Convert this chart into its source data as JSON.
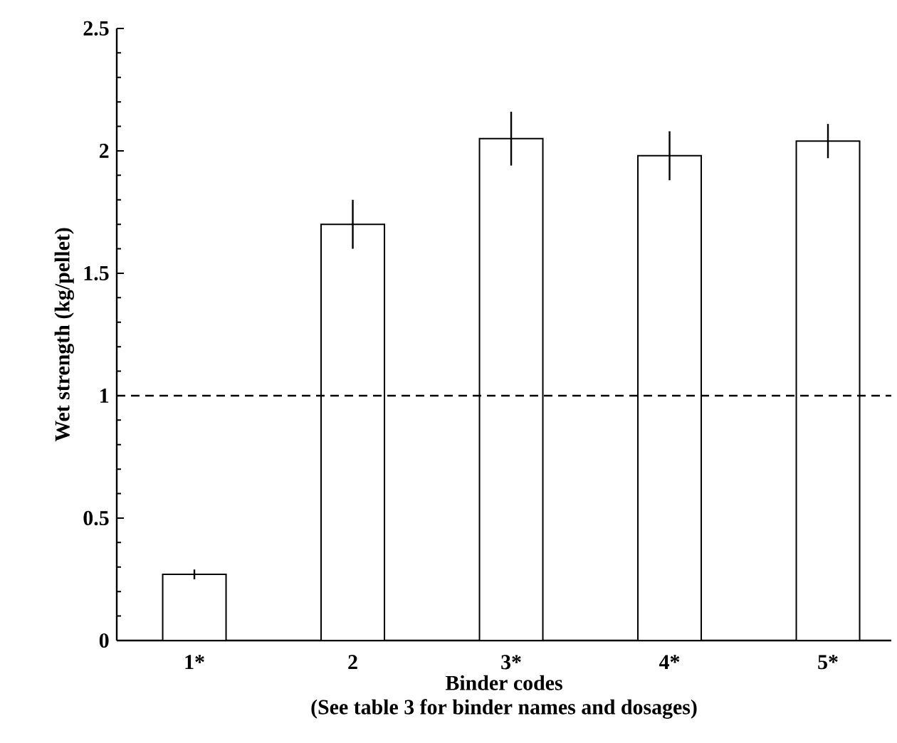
{
  "chart_data": {
    "type": "bar",
    "ylabel": "Wet strength (kg/pellet)",
    "xlabel": "Binder codes",
    "annotations": [
      "(See table 3 for binder names and dosages)"
    ],
    "categories": [
      "1*",
      "2",
      "3*",
      "4*",
      "5*"
    ],
    "values": [
      0.27,
      1.7,
      2.05,
      1.98,
      2.04
    ],
    "errors": [
      0.02,
      0.1,
      0.11,
      0.1,
      0.07
    ],
    "color": "#ffffff",
    "ylim": [
      0,
      2.5
    ],
    "yticks": [
      0,
      0.5,
      1,
      1.5,
      2,
      2.5
    ],
    "ref_lines": [
      {
        "axis": "y",
        "value": 1,
        "line_style": "dashed",
        "color": "#000000"
      }
    ],
    "grid": false
  }
}
